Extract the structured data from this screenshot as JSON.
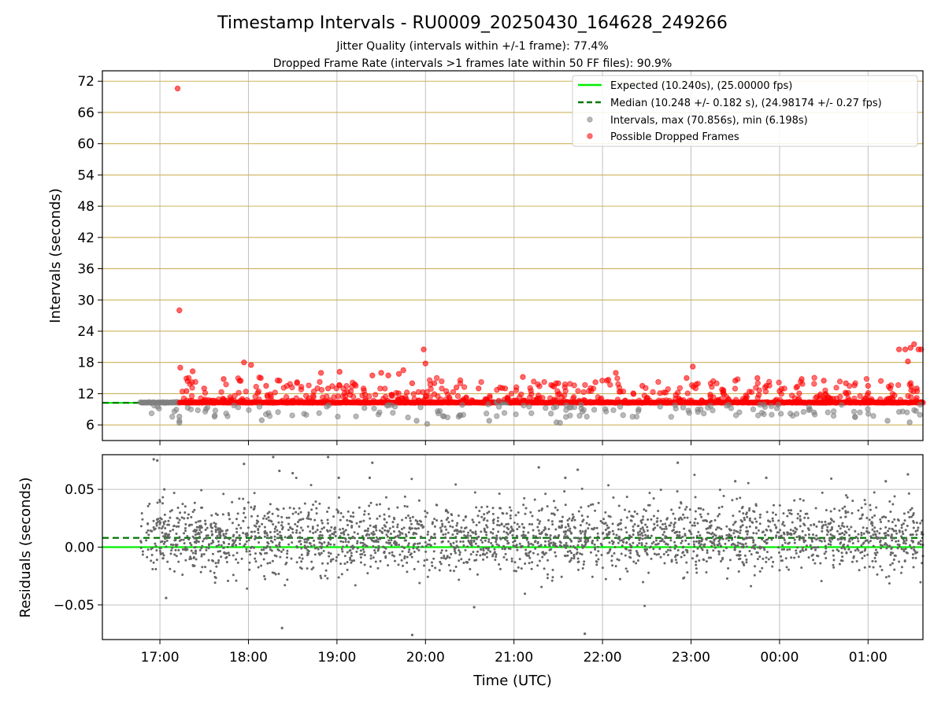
{
  "figure": {
    "title": "Timestamp Intervals - RU0009_20250430_164628_249266",
    "subtitle_1": "Jitter Quality (intervals within +/-1 frame): 77.4%",
    "subtitle_2": "Dropped Frame Rate (intervals >1 frames late within 50 FF files): 90.9%"
  },
  "colors": {
    "expected": "#00ee00",
    "median": "#007700",
    "interval_points": "#808080",
    "dropped_points": "#ff0000",
    "interval_gridlines": "#cdb35a",
    "residual_points": "#666666"
  },
  "chart_data": [
    {
      "type": "scatter",
      "panel": "intervals",
      "ylabel": "Intervals (seconds)",
      "xlabel": "",
      "x_unit": "hours after 00:00 UTC 2025-04-30 (24 = 00:00 next day)",
      "xlim": [
        16.35,
        25.62
      ],
      "ylim": [
        3,
        74
      ],
      "yticks": [
        6,
        12,
        18,
        24,
        30,
        36,
        42,
        48,
        54,
        60,
        66,
        72
      ],
      "ytick_labels": [
        "6",
        "12",
        "18",
        "24",
        "30",
        "36",
        "42",
        "48",
        "54",
        "60",
        "66",
        "72"
      ],
      "grid": true,
      "legend_position": "top-right",
      "legend": [
        "Expected (10.240s), (25.00000 fps)",
        "Median (10.248 +/- 0.182 s), (24.98174 +/- 0.27 fps)",
        "Intervals, max (70.856s), min (6.198s)",
        "Possible Dropped Frames"
      ],
      "expected_interval": 10.24,
      "median_interval": 10.248,
      "x_data_range": [
        16.78,
        25.62
      ],
      "max_interval": 70.856,
      "min_interval": 6.198,
      "dropped_points": [
        {
          "x": 17.2,
          "y": 70.6
        },
        {
          "x": 17.22,
          "y": 28.0
        },
        {
          "x": 17.23,
          "y": 17.0
        },
        {
          "x": 17.37,
          "y": 16.3
        },
        {
          "x": 17.3,
          "y": 12.5
        },
        {
          "x": 17.5,
          "y": 13.0
        },
        {
          "x": 17.72,
          "y": 14.8
        },
        {
          "x": 17.9,
          "y": 14.5
        },
        {
          "x": 17.95,
          "y": 18.0
        },
        {
          "x": 18.03,
          "y": 17.5
        },
        {
          "x": 18.14,
          "y": 15.0
        },
        {
          "x": 18.2,
          "y": 13.5
        },
        {
          "x": 18.35,
          "y": 14.5
        },
        {
          "x": 18.55,
          "y": 14.2
        },
        {
          "x": 18.82,
          "y": 16.0
        },
        {
          "x": 18.9,
          "y": 13.0
        },
        {
          "x": 19.03,
          "y": 16.2
        },
        {
          "x": 19.2,
          "y": 13.8
        },
        {
          "x": 19.4,
          "y": 15.5
        },
        {
          "x": 19.5,
          "y": 16.0
        },
        {
          "x": 19.58,
          "y": 15.5
        },
        {
          "x": 19.7,
          "y": 15.8
        },
        {
          "x": 19.75,
          "y": 16.5
        },
        {
          "x": 19.85,
          "y": 14.0
        },
        {
          "x": 19.98,
          "y": 20.5
        },
        {
          "x": 20.0,
          "y": 17.8
        },
        {
          "x": 20.1,
          "y": 14.0
        },
        {
          "x": 20.35,
          "y": 13.2
        },
        {
          "x": 20.6,
          "y": 13.0
        },
        {
          "x": 20.9,
          "y": 13.0
        },
        {
          "x": 21.1,
          "y": 15.2
        },
        {
          "x": 21.5,
          "y": 14.0
        },
        {
          "x": 21.92,
          "y": 14.2
        },
        {
          "x": 22.05,
          "y": 14.5
        },
        {
          "x": 22.15,
          "y": 16.0
        },
        {
          "x": 22.45,
          "y": 13.5
        },
        {
          "x": 22.95,
          "y": 15.0
        },
        {
          "x": 23.02,
          "y": 17.2
        },
        {
          "x": 23.35,
          "y": 12.8
        },
        {
          "x": 23.5,
          "y": 14.5
        },
        {
          "x": 23.75,
          "y": 15.0
        },
        {
          "x": 23.85,
          "y": 13.5
        },
        {
          "x": 24.0,
          "y": 12.5
        },
        {
          "x": 24.25,
          "y": 14.8
        },
        {
          "x": 24.5,
          "y": 14.5
        },
        {
          "x": 24.75,
          "y": 14.0
        },
        {
          "x": 25.0,
          "y": 13.5
        },
        {
          "x": 25.25,
          "y": 13.0
        },
        {
          "x": 25.35,
          "y": 20.5
        },
        {
          "x": 25.42,
          "y": 20.5
        },
        {
          "x": 25.45,
          "y": 18.2
        },
        {
          "x": 25.48,
          "y": 20.8
        },
        {
          "x": 25.52,
          "y": 21.5
        },
        {
          "x": 25.57,
          "y": 20.5
        },
        {
          "x": 25.6,
          "y": 20.5
        },
        {
          "x": 25.55,
          "y": 13.0
        }
      ],
      "low_interval_points": [
        {
          "x": 17.22,
          "y": 6.4
        },
        {
          "x": 17.22,
          "y": 6.8
        },
        {
          "x": 17.22,
          "y": 7.6
        },
        {
          "x": 21.48,
          "y": 6.5
        },
        {
          "x": 21.52,
          "y": 6.4
        },
        {
          "x": 20.02,
          "y": 6.2
        },
        {
          "x": 25.22,
          "y": 6.8
        },
        {
          "x": 25.47,
          "y": 6.5
        },
        {
          "x": 19.9,
          "y": 6.8
        },
        {
          "x": 20.72,
          "y": 6.8
        },
        {
          "x": 18.15,
          "y": 6.9
        }
      ]
    },
    {
      "type": "scatter",
      "panel": "residuals",
      "ylabel": "Residuals (seconds)",
      "xlabel": "Time (UTC)",
      "xlim": [
        16.35,
        25.62
      ],
      "ylim": [
        -0.08,
        0.08
      ],
      "yticks": [
        -0.05,
        0.0,
        0.05
      ],
      "ytick_labels": [
        "−0.05",
        "0.00",
        "0.05"
      ],
      "xticks": [
        17,
        18,
        19,
        20,
        21,
        22,
        23,
        24,
        25
      ],
      "xtick_labels": [
        "17:00",
        "18:00",
        "19:00",
        "20:00",
        "21:00",
        "22:00",
        "23:00",
        "00:00",
        "01:00"
      ],
      "grid": true,
      "expected_residual": 0.0,
      "median_residual": 0.008,
      "residual_spread_typical": 0.015,
      "outliers": [
        {
          "x": 16.93,
          "y": 0.076
        },
        {
          "x": 16.97,
          "y": 0.075
        },
        {
          "x": 17.05,
          "y": 0.05
        },
        {
          "x": 17.07,
          "y": -0.044
        },
        {
          "x": 17.95,
          "y": 0.072
        },
        {
          "x": 18.38,
          "y": -0.07
        },
        {
          "x": 18.35,
          "y": 0.066
        },
        {
          "x": 18.5,
          "y": 0.064
        },
        {
          "x": 19.02,
          "y": 0.06
        },
        {
          "x": 19.37,
          "y": 0.06
        },
        {
          "x": 19.4,
          "y": 0.073
        },
        {
          "x": 19.85,
          "y": -0.076
        },
        {
          "x": 20.55,
          "y": -0.052
        },
        {
          "x": 21.28,
          "y": 0.069
        },
        {
          "x": 21.58,
          "y": 0.06
        },
        {
          "x": 21.72,
          "y": 0.067
        },
        {
          "x": 21.8,
          "y": -0.075
        },
        {
          "x": 22.85,
          "y": 0.073
        },
        {
          "x": 23.5,
          "y": 0.057
        },
        {
          "x": 23.85,
          "y": 0.06
        },
        {
          "x": 25.2,
          "y": 0.057
        },
        {
          "x": 25.45,
          "y": 0.063
        },
        {
          "x": 18.9,
          "y": 0.078
        },
        {
          "x": 18.28,
          "y": 0.078
        }
      ]
    }
  ]
}
